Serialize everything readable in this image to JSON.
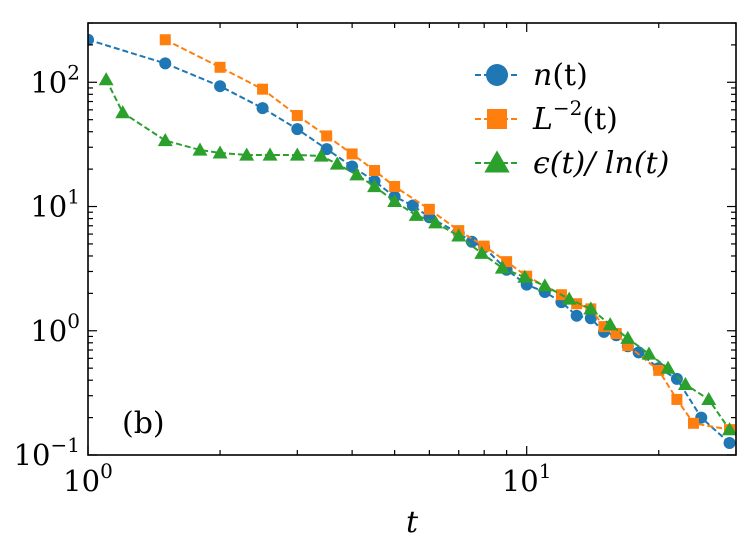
{
  "chart_data": {
    "type": "line",
    "xlabel": "t",
    "x_scale": "log",
    "y_scale": "log",
    "xlim": [
      1,
      30
    ],
    "ylim": [
      0.1,
      300
    ],
    "grid": false,
    "legend_position": "top-right",
    "panel_label": "(b)",
    "x_ticks": [
      {
        "value": 1,
        "base": "10",
        "exp": "0"
      },
      {
        "value": 10,
        "base": "10",
        "exp": "1"
      }
    ],
    "y_ticks": [
      {
        "value": 0.1,
        "base": "10",
        "exp": "−1"
      },
      {
        "value": 1,
        "base": "10",
        "exp": "0"
      },
      {
        "value": 10,
        "base": "10",
        "exp": "1"
      },
      {
        "value": 100,
        "base": "10",
        "exp": "2"
      }
    ],
    "series": [
      {
        "name": "n(t)",
        "legend": {
          "main": "n",
          "sup": "",
          "rest": "(t)"
        },
        "color": "#1f77b4",
        "marker": "circle",
        "x": [
          1.0,
          1.5,
          2.0,
          2.5,
          3.0,
          3.5,
          4.0,
          4.5,
          5.0,
          5.5,
          6.0,
          7.0,
          7.5,
          8.0,
          9.0,
          10.0,
          11.0,
          12.0,
          13.0,
          14.0,
          15.0,
          16.0,
          17.0,
          18.0,
          20.0,
          22.0,
          25.0,
          29.0
        ],
        "y": [
          220,
          142,
          93,
          62,
          42,
          29,
          21,
          16,
          12,
          10.2,
          8.2,
          6.1,
          5.2,
          4.7,
          3.1,
          2.35,
          2.05,
          1.7,
          1.32,
          1.26,
          0.98,
          0.92,
          0.75,
          0.67,
          0.5,
          0.41,
          0.2,
          0.125
        ]
      },
      {
        "name": "L^-2(t)",
        "legend": {
          "main": "L",
          "sup": "−2",
          "rest": "(t)"
        },
        "color": "#ff7f0e",
        "marker": "square",
        "x": [
          1.5,
          2.0,
          2.5,
          3.0,
          3.5,
          4.0,
          4.5,
          5.0,
          6.0,
          7.0,
          8.0,
          9.0,
          10.0,
          12.0,
          13.0,
          14.0,
          15.0,
          16.0,
          17.0,
          20.0,
          22.0,
          24.0,
          29.0
        ],
        "y": [
          220,
          132,
          88,
          54,
          37,
          26.5,
          19.5,
          14.5,
          9.5,
          6.4,
          4.8,
          3.6,
          2.75,
          1.95,
          1.65,
          1.5,
          1.08,
          0.95,
          0.76,
          0.48,
          0.28,
          0.18,
          0.16
        ]
      },
      {
        "name": "ε(t)/ln(t)",
        "legend": {
          "main": "ϵ(t)/ ln(t)",
          "sup": "",
          "rest": ""
        },
        "color": "#2ca02c",
        "marker": "triangle",
        "x": [
          1.1,
          1.2,
          1.5,
          1.8,
          2.0,
          2.3,
          2.6,
          3.0,
          3.4,
          3.7,
          4.1,
          4.5,
          5.0,
          5.6,
          6.2,
          7.0,
          7.9,
          8.8,
          9.9,
          11.0,
          12.5,
          14.0,
          15.5,
          17.0,
          19.0,
          21.0,
          23.0,
          26.0,
          29.0
        ],
        "y": [
          105,
          57,
          34,
          28.5,
          27,
          26,
          26,
          26,
          25.5,
          22,
          18,
          14.5,
          11,
          8.5,
          7.4,
          5.8,
          4.2,
          3.2,
          2.7,
          2.3,
          1.8,
          1.5,
          1.12,
          0.87,
          0.65,
          0.5,
          0.37,
          0.28,
          0.16
        ]
      }
    ]
  }
}
